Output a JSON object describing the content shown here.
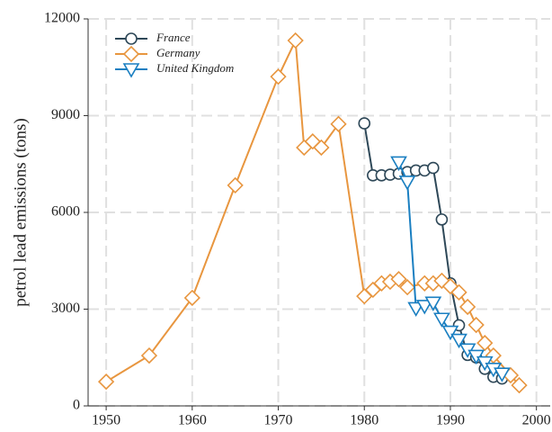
{
  "chart_data": {
    "type": "line",
    "y_label": "petrol lead emissions (tons)",
    "xlim": [
      1947.9,
      2001.6
    ],
    "ylim": [
      0,
      12000
    ],
    "xticks": [
      1950,
      1960,
      1970,
      1980,
      1990,
      2000
    ],
    "yticks": [
      0,
      3000,
      6000,
      9000,
      12000
    ],
    "grid": true,
    "legend": "upper-left",
    "series": [
      {
        "name": "France",
        "color": "#2e4858",
        "marker": "circle",
        "x": [
          1980,
          1981,
          1982,
          1983,
          1984,
          1985,
          1986,
          1987,
          1988,
          1989,
          1990,
          1991,
          1992,
          1993,
          1994,
          1995,
          1996
        ],
        "values": [
          8760,
          7150,
          7150,
          7170,
          7200,
          7250,
          7300,
          7300,
          7380,
          5780,
          3800,
          2500,
          1580,
          1500,
          1150,
          900,
          850
        ]
      },
      {
        "name": "Germany",
        "color": "#e8963f",
        "marker": "diamond",
        "x": [
          1950,
          1955,
          1960,
          1965,
          1970,
          1972,
          1973,
          1974,
          1975,
          1977,
          1980,
          1981,
          1982,
          1983,
          1984,
          1985,
          1987,
          1988,
          1989,
          1990,
          1991,
          1992,
          1993,
          1994,
          1995,
          1997,
          1998
        ],
        "values": [
          750,
          1560,
          3350,
          6840,
          10210,
          11330,
          8010,
          8200,
          8010,
          8740,
          3400,
          3600,
          3800,
          3850,
          3930,
          3680,
          3800,
          3800,
          3880,
          3710,
          3520,
          3070,
          2510,
          1950,
          1560,
          950,
          640
        ]
      },
      {
        "name": "United Kingdom",
        "color": "#1a7fc1",
        "marker": "triangle-down",
        "x": [
          1984,
          1985,
          1986,
          1987,
          1988,
          1989,
          1990,
          1991,
          1992,
          1993,
          1994,
          1995,
          1996
        ],
        "values": [
          7550,
          6950,
          3030,
          3100,
          3200,
          2700,
          2300,
          2050,
          1750,
          1550,
          1350,
          1150,
          1000
        ]
      }
    ]
  }
}
